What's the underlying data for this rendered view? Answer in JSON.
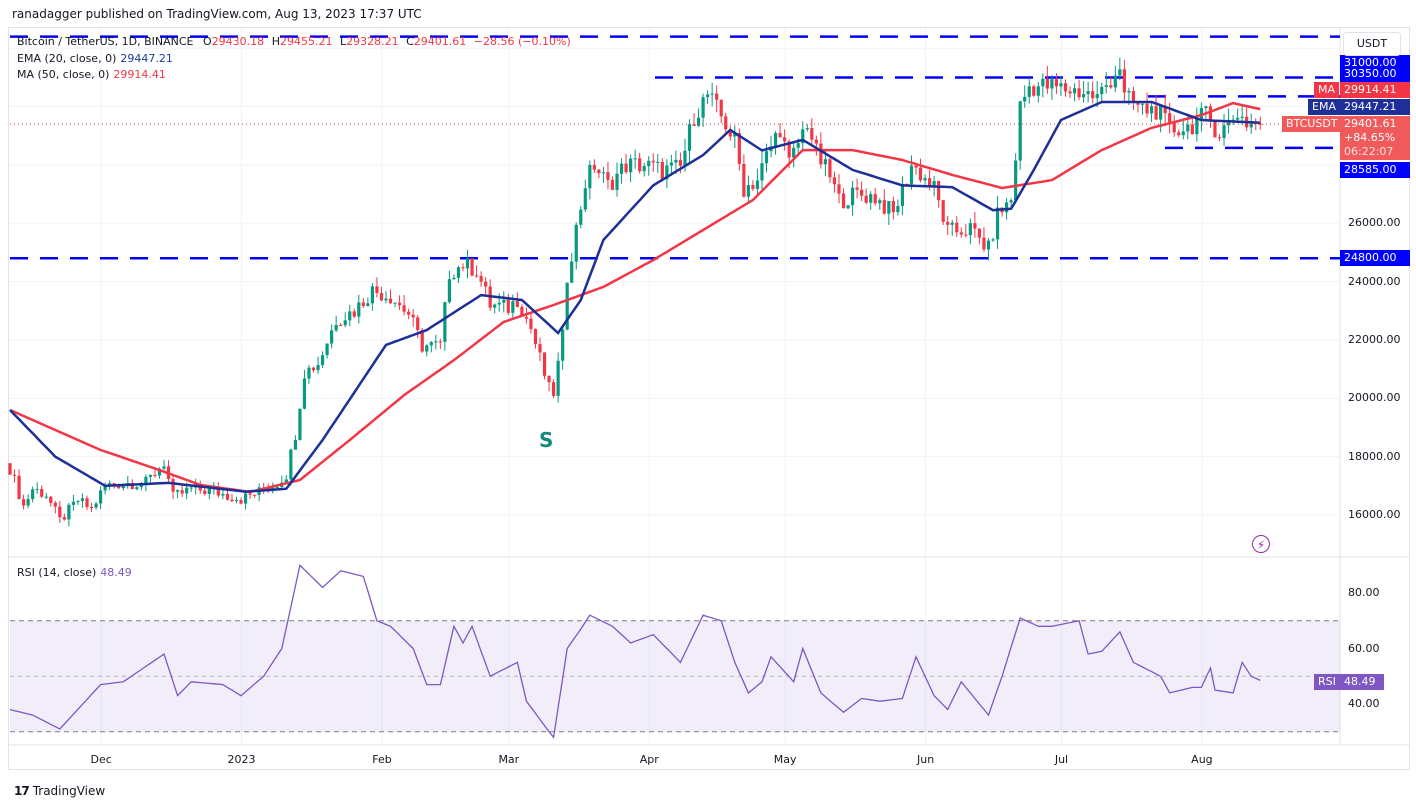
{
  "publisher": "ranadagger published on TradingView.com, Aug 13, 2023 17:37 UTC",
  "legend": {
    "symbol": "Bitcoin / TetherUS, 1D, BINANCE",
    "o_label": "O",
    "o": "29430.18",
    "h_label": "H",
    "h": "29455.21",
    "l_label": "L",
    "l": "29328.21",
    "c_label": "C",
    "c": "29401.61",
    "change": "−28.56 (−0.10%)",
    "ema_label": "EMA (20, close, 0)",
    "ema_value": "29447.21",
    "ma_label": "MA (50, close, 0)",
    "ma_value": "29914.41",
    "rsi_label": "RSI (14, close)",
    "rsi_value": "48.49"
  },
  "price_axis": {
    "currency": "USDT",
    "ticks": [
      "26000.00",
      "24000.00",
      "22000.00",
      "20000.00",
      "18000.00",
      "16000.00"
    ],
    "tags": {
      "level_31000": "31000.00",
      "level_30350": "30350.00",
      "ma_tag": "MA",
      "ma_value": "29914.41",
      "ema_tag": "EMA",
      "ema_value": "29447.21",
      "symbol_tag": "BTCUSDT",
      "last_price": "29401.61",
      "change_pct": "+84.65%",
      "countdown": "06:22:07",
      "level_28585": "28585.00",
      "level_24800": "24800.00"
    }
  },
  "rsi_axis": {
    "ticks": [
      "80.00",
      "60.00",
      "40.00"
    ],
    "tag": "RSI",
    "value": "48.49"
  },
  "time_axis": [
    "Dec",
    "2023",
    "Feb",
    "Mar",
    "Apr",
    "May",
    "Jun",
    "Jul",
    "Aug"
  ],
  "annotation": "S",
  "footer_logo": "TradingView",
  "colors": {
    "up": "#089981",
    "down": "#f23645",
    "ema": "#1e2f97",
    "ma": "#f23645",
    "levels": "#0000ff",
    "rsi": "#7e57c2"
  },
  "chart_data": {
    "type": "candlestick",
    "symbol": "BTCUSDT",
    "interval": "1D",
    "ylim": [
      15000,
      32800
    ],
    "levels": [
      32400,
      31000,
      30350,
      28585,
      24800
    ],
    "close": [
      [
        "2022-11-10",
        17600
      ],
      [
        "2022-11-13",
        16300
      ],
      [
        "2022-11-15",
        16900
      ],
      [
        "2022-11-18",
        16700
      ],
      [
        "2022-11-21",
        15800
      ],
      [
        "2022-11-25",
        16500
      ],
      [
        "2022-11-28",
        16200
      ],
      [
        "2022-12-01",
        17000
      ],
      [
        "2022-12-05",
        17100
      ],
      [
        "2022-12-10",
        17100
      ],
      [
        "2022-12-14",
        17800
      ],
      [
        "2022-12-16",
        16600
      ],
      [
        "2022-12-20",
        16900
      ],
      [
        "2022-12-25",
        16800
      ],
      [
        "2022-12-31",
        16550
      ],
      [
        "2023-01-05",
        16850
      ],
      [
        "2023-01-08",
        17100
      ],
      [
        "2023-01-10",
        17400
      ],
      [
        "2023-01-12",
        18800
      ],
      [
        "2023-01-14",
        20900
      ],
      [
        "2023-01-17",
        21200
      ],
      [
        "2023-01-21",
        22700
      ],
      [
        "2023-01-25",
        23000
      ],
      [
        "2023-01-29",
        23700
      ],
      [
        "2023-02-02",
        23500
      ],
      [
        "2023-02-06",
        22900
      ],
      [
        "2023-02-09",
        21800
      ],
      [
        "2023-02-13",
        21800
      ],
      [
        "2023-02-15",
        24300
      ],
      [
        "2023-02-18",
        24600
      ],
      [
        "2023-02-21",
        24400
      ],
      [
        "2023-02-24",
        23200
      ],
      [
        "2023-02-28",
        23100
      ],
      [
        "2023-03-02",
        23400
      ],
      [
        "2023-03-05",
        22400
      ],
      [
        "2023-03-09",
        20300
      ],
      [
        "2023-03-10",
        20200
      ],
      [
        "2023-03-12",
        22100
      ],
      [
        "2023-03-13",
        24200
      ],
      [
        "2023-03-17",
        27400
      ],
      [
        "2023-03-19",
        28000
      ],
      [
        "2023-03-22",
        27300
      ],
      [
        "2023-03-26",
        28000
      ],
      [
        "2023-03-30",
        28000
      ],
      [
        "2023-04-03",
        27800
      ],
      [
        "2023-04-07",
        27900
      ],
      [
        "2023-04-10",
        29700
      ],
      [
        "2023-04-13",
        30400
      ],
      [
        "2023-04-17",
        29400
      ],
      [
        "2023-04-19",
        28800
      ],
      [
        "2023-04-21",
        27200
      ],
      [
        "2023-04-24",
        27500
      ],
      [
        "2023-04-26",
        28300
      ],
      [
        "2023-04-29",
        29300
      ],
      [
        "2023-05-01",
        28000
      ],
      [
        "2023-05-05",
        29500
      ],
      [
        "2023-05-07",
        28400
      ],
      [
        "2023-05-10",
        27600
      ],
      [
        "2023-05-12",
        26800
      ],
      [
        "2023-05-16",
        27000
      ],
      [
        "2023-05-20",
        26900
      ],
      [
        "2023-05-24",
        26300
      ],
      [
        "2023-05-28",
        28000
      ],
      [
        "2023-05-30",
        27700
      ],
      [
        "2023-06-02",
        27200
      ],
      [
        "2023-06-05",
        25700
      ],
      [
        "2023-06-10",
        25800
      ],
      [
        "2023-06-14",
        25100
      ],
      [
        "2023-06-16",
        26300
      ],
      [
        "2023-06-19",
        26800
      ],
      [
        "2023-06-20",
        28300
      ],
      [
        "2023-06-21",
        30000
      ],
      [
        "2023-06-23",
        30700
      ],
      [
        "2023-06-27",
        30700
      ],
      [
        "2023-07-01",
        30600
      ],
      [
        "2023-07-05",
        30500
      ],
      [
        "2023-07-08",
        30300
      ],
      [
        "2023-07-13",
        31400
      ],
      [
        "2023-07-14",
        30300
      ],
      [
        "2023-07-18",
        29900
      ],
      [
        "2023-07-21",
        29900
      ],
      [
        "2023-07-24",
        29200
      ],
      [
        "2023-07-28",
        29300
      ],
      [
        "2023-08-01",
        29700
      ],
      [
        "2023-08-04",
        29100
      ],
      [
        "2023-08-08",
        29800
      ],
      [
        "2023-08-10",
        29450
      ],
      [
        "2023-08-13",
        29401.61
      ]
    ],
    "ema20": [
      [
        "2022-11-10",
        19600
      ],
      [
        "2022-11-20",
        18000
      ],
      [
        "2022-12-01",
        17000
      ],
      [
        "2022-12-15",
        17100
      ],
      [
        "2023-01-01",
        16800
      ],
      [
        "2023-01-10",
        16900
      ],
      [
        "2023-01-18",
        18570
      ],
      [
        "2023-02-01",
        21830
      ],
      [
        "2023-02-10",
        22340
      ],
      [
        "2023-02-22",
        23540
      ],
      [
        "2023-03-03",
        23370
      ],
      [
        "2023-03-11",
        22240
      ],
      [
        "2023-03-16",
        23370
      ],
      [
        "2023-03-21",
        25430
      ],
      [
        "2023-04-01",
        27300
      ],
      [
        "2023-04-12",
        28340
      ],
      [
        "2023-04-18",
        29200
      ],
      [
        "2023-04-25",
        28500
      ],
      [
        "2023-05-04",
        28860
      ],
      [
        "2023-05-15",
        27830
      ],
      [
        "2023-05-26",
        27300
      ],
      [
        "2023-06-06",
        27240
      ],
      [
        "2023-06-15",
        26450
      ],
      [
        "2023-06-19",
        26500
      ],
      [
        "2023-06-24",
        27830
      ],
      [
        "2023-06-30",
        29540
      ],
      [
        "2023-07-09",
        30160
      ],
      [
        "2023-07-20",
        30160
      ],
      [
        "2023-07-31",
        29540
      ],
      [
        "2023-08-13",
        29447.21
      ]
    ],
    "ma50": [
      [
        "2022-11-10",
        19600
      ],
      [
        "2022-11-30",
        18230
      ],
      [
        "2022-12-13",
        17540
      ],
      [
        "2022-12-22",
        17030
      ],
      [
        "2023-01-02",
        16790
      ],
      [
        "2023-01-13",
        17200
      ],
      [
        "2023-01-24",
        18570
      ],
      [
        "2023-02-05",
        20110
      ],
      [
        "2023-02-16",
        21310
      ],
      [
        "2023-02-27",
        22620
      ],
      [
        "2023-03-10",
        23200
      ],
      [
        "2023-03-21",
        23820
      ],
      [
        "2023-04-01",
        24740
      ],
      [
        "2023-04-12",
        25770
      ],
      [
        "2023-04-23",
        26800
      ],
      [
        "2023-05-04",
        28510
      ],
      [
        "2023-05-15",
        28510
      ],
      [
        "2023-05-26",
        28170
      ],
      [
        "2023-06-06",
        27660
      ],
      [
        "2023-06-17",
        27210
      ],
      [
        "2023-06-28",
        27480
      ],
      [
        "2023-07-09",
        28510
      ],
      [
        "2023-07-20",
        29270
      ],
      [
        "2023-07-31",
        29710
      ],
      [
        "2023-08-07",
        30120
      ],
      [
        "2023-08-13",
        29914.41
      ]
    ],
    "rsi": [
      [
        "2022-11-10",
        38
      ],
      [
        "2022-11-15",
        36
      ],
      [
        "2022-11-21",
        31
      ],
      [
        "2022-11-30",
        47
      ],
      [
        "2022-12-05",
        48
      ],
      [
        "2022-12-14",
        58
      ],
      [
        "2022-12-17",
        43
      ],
      [
        "2022-12-20",
        48
      ],
      [
        "2022-12-27",
        47
      ],
      [
        "2022-12-31",
        43
      ],
      [
        "2023-01-05",
        50
      ],
      [
        "2023-01-09",
        60
      ],
      [
        "2023-01-13",
        90
      ],
      [
        "2023-01-18",
        82
      ],
      [
        "2023-01-22",
        88
      ],
      [
        "2023-01-27",
        86
      ],
      [
        "2023-01-30",
        70
      ],
      [
        "2023-02-02",
        68
      ],
      [
        "2023-02-07",
        60
      ],
      [
        "2023-02-10",
        47
      ],
      [
        "2023-02-13",
        47
      ],
      [
        "2023-02-16",
        68
      ],
      [
        "2023-02-18",
        62
      ],
      [
        "2023-02-20",
        68
      ],
      [
        "2023-02-24",
        50
      ],
      [
        "2023-03-02",
        55
      ],
      [
        "2023-03-04",
        41
      ],
      [
        "2023-03-09",
        30
      ],
      [
        "2023-03-10",
        28
      ],
      [
        "2023-03-13",
        60
      ],
      [
        "2023-03-16",
        67
      ],
      [
        "2023-03-18",
        72
      ],
      [
        "2023-03-23",
        68
      ],
      [
        "2023-03-27",
        62
      ],
      [
        "2023-04-01",
        65
      ],
      [
        "2023-04-07",
        55
      ],
      [
        "2023-04-12",
        72
      ],
      [
        "2023-04-16",
        70
      ],
      [
        "2023-04-19",
        55
      ],
      [
        "2023-04-22",
        44
      ],
      [
        "2023-04-25",
        48
      ],
      [
        "2023-04-27",
        57
      ],
      [
        "2023-05-02",
        48
      ],
      [
        "2023-05-04",
        60
      ],
      [
        "2023-05-08",
        44
      ],
      [
        "2023-05-13",
        37
      ],
      [
        "2023-05-17",
        42
      ],
      [
        "2023-05-21",
        41
      ],
      [
        "2023-05-26",
        42
      ],
      [
        "2023-05-29",
        57
      ],
      [
        "2023-06-02",
        43
      ],
      [
        "2023-06-05",
        38
      ],
      [
        "2023-06-08",
        48
      ],
      [
        "2023-06-14",
        36
      ],
      [
        "2023-06-17",
        50
      ],
      [
        "2023-06-21",
        71
      ],
      [
        "2023-06-25",
        68
      ],
      [
        "2023-06-28",
        68
      ],
      [
        "2023-07-04",
        70
      ],
      [
        "2023-07-06",
        58
      ],
      [
        "2023-07-09",
        59
      ],
      [
        "2023-07-13",
        66
      ],
      [
        "2023-07-16",
        55
      ],
      [
        "2023-07-22",
        50
      ],
      [
        "2023-07-24",
        44
      ],
      [
        "2023-07-29",
        46
      ],
      [
        "2023-07-31",
        46
      ],
      [
        "2023-08-02",
        53
      ],
      [
        "2023-08-03",
        45
      ],
      [
        "2023-08-07",
        44
      ],
      [
        "2023-08-09",
        55
      ],
      [
        "2023-08-11",
        50
      ],
      [
        "2023-08-13",
        48.49
      ]
    ],
    "rsi_bands": [
      70,
      50,
      30
    ]
  }
}
